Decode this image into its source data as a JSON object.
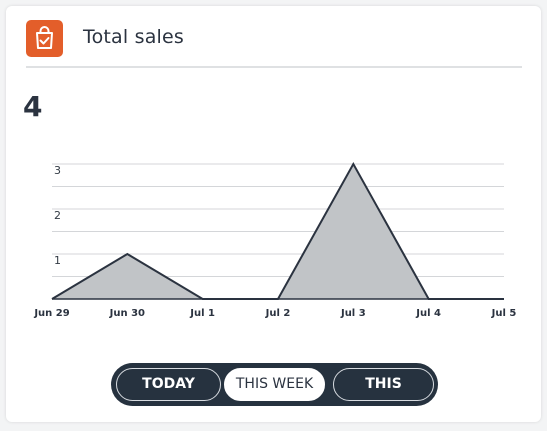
{
  "widget": {
    "title": "Total sales",
    "total_value": "4",
    "icon": "shopping-bag-check-icon",
    "accent_color": "#e35e2a"
  },
  "chart_data": {
    "type": "area",
    "categories": [
      "Jun 29",
      "Jun 30",
      "Jul 1",
      "Jul 2",
      "Jul 3",
      "Jul 4",
      "Jul 5"
    ],
    "values": [
      0,
      1,
      0,
      0,
      3,
      0,
      0
    ],
    "yticks": [
      "1",
      "2",
      "3"
    ],
    "ylim": [
      0,
      3
    ],
    "grid": true,
    "fill_color": "#c1c4c7",
    "line_color": "#2b3340"
  },
  "range_selector": {
    "options": [
      "TODAY",
      "THIS WEEK",
      "THIS MONTH"
    ],
    "selected": "THIS WEEK"
  }
}
